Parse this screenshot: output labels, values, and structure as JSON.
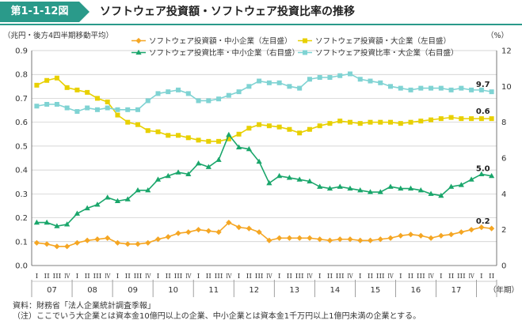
{
  "header": {
    "figure_label": "第1-1-12図",
    "title": "ソフトウェア投資額・ソフトウェア投資比率の推移"
  },
  "notes": {
    "source": "資料：財務省「法人企業統計調査季報」",
    "note": "（注）ここでいう大企業とは資本金10億円以上の企業、中小企業とは資本金1千万円以上1億円未満の企業とする。"
  },
  "chart_data": {
    "type": "line",
    "left_axis_label": "（兆円・後方4四半期移動平均）",
    "right_axis_label": "（%）",
    "x_axis_label": "（年期）",
    "left_ylim": [
      0.0,
      0.9
    ],
    "right_ylim": [
      0,
      12
    ],
    "left_ticks": [
      "0.0",
      "0.1",
      "0.2",
      "0.3",
      "0.4",
      "0.5",
      "0.6",
      "0.7",
      "0.8",
      "0.9"
    ],
    "right_ticks": [
      "0",
      "2",
      "4",
      "6",
      "8",
      "10",
      "12"
    ],
    "quarter_labels": [
      "I",
      "II",
      "III",
      "IV"
    ],
    "years": [
      "07",
      "08",
      "09",
      "10",
      "11",
      "12",
      "13",
      "14",
      "15",
      "16",
      "17"
    ],
    "series": [
      {
        "name": "ソフトウェア投資額・中小企業（左目盛）",
        "axis": "left",
        "color": "#f5a623",
        "marker": "diamond",
        "end_label": "0.2",
        "values": [
          0.095,
          0.09,
          0.08,
          0.08,
          0.095,
          0.105,
          0.11,
          0.115,
          0.095,
          0.09,
          0.09,
          0.095,
          0.11,
          0.12,
          0.135,
          0.14,
          0.15,
          0.145,
          0.14,
          0.18,
          0.16,
          0.155,
          0.14,
          0.105,
          0.115,
          0.115,
          0.115,
          0.115,
          0.11,
          0.105,
          0.11,
          0.11,
          0.105,
          0.105,
          0.11,
          0.115,
          0.125,
          0.13,
          0.125,
          0.115,
          0.125,
          0.13,
          0.14,
          0.15,
          0.16,
          0.155
        ]
      },
      {
        "name": "ソフトウェア投資額・大企業（左目盛）",
        "axis": "left",
        "color": "#e8d000",
        "marker": "square",
        "end_label": "0.6",
        "values": [
          0.755,
          0.775,
          0.785,
          0.745,
          0.735,
          0.725,
          0.7,
          0.685,
          0.63,
          0.6,
          0.59,
          0.565,
          0.56,
          0.545,
          0.545,
          0.535,
          0.525,
          0.52,
          0.52,
          0.53,
          0.55,
          0.575,
          0.59,
          0.585,
          0.58,
          0.57,
          0.555,
          0.57,
          0.585,
          0.595,
          0.605,
          0.6,
          0.595,
          0.6,
          0.6,
          0.6,
          0.595,
          0.6,
          0.605,
          0.61,
          0.615,
          0.62,
          0.615,
          0.615,
          0.615,
          0.615
        ]
      },
      {
        "name": "ソフトウェア投資比率・中小企業（右目盛）",
        "axis": "right",
        "color": "#1aa66b",
        "marker": "triangle",
        "end_label": "5.0",
        "values": [
          2.4,
          2.4,
          2.2,
          2.3,
          2.9,
          3.2,
          3.4,
          3.8,
          3.6,
          3.7,
          4.2,
          4.2,
          4.8,
          5.0,
          5.2,
          5.1,
          5.7,
          5.5,
          5.9,
          7.3,
          6.6,
          6.5,
          5.8,
          4.6,
          5.0,
          4.9,
          4.8,
          4.7,
          4.4,
          4.3,
          4.4,
          4.3,
          4.2,
          4.1,
          4.1,
          4.4,
          4.3,
          4.3,
          4.2,
          4.0,
          3.9,
          4.4,
          4.5,
          4.8,
          5.1,
          5.0
        ]
      },
      {
        "name": "ソフトウェア投資比率・大企業（右目盛）",
        "axis": "right",
        "color": "#7fd3d3",
        "marker": "square",
        "end_label": "9.7",
        "values": [
          8.9,
          9.0,
          9.0,
          8.8,
          8.6,
          8.8,
          8.7,
          8.8,
          8.7,
          8.7,
          8.7,
          9.2,
          9.6,
          9.7,
          9.8,
          9.6,
          9.2,
          9.2,
          9.3,
          9.5,
          9.7,
          10.0,
          10.3,
          10.2,
          10.2,
          10.0,
          9.9,
          10.4,
          10.5,
          10.5,
          10.6,
          10.7,
          10.4,
          10.3,
          10.2,
          10.0,
          9.9,
          9.8,
          9.9,
          9.9,
          9.9,
          9.8,
          9.9,
          9.8,
          9.8,
          9.7
        ]
      }
    ]
  }
}
